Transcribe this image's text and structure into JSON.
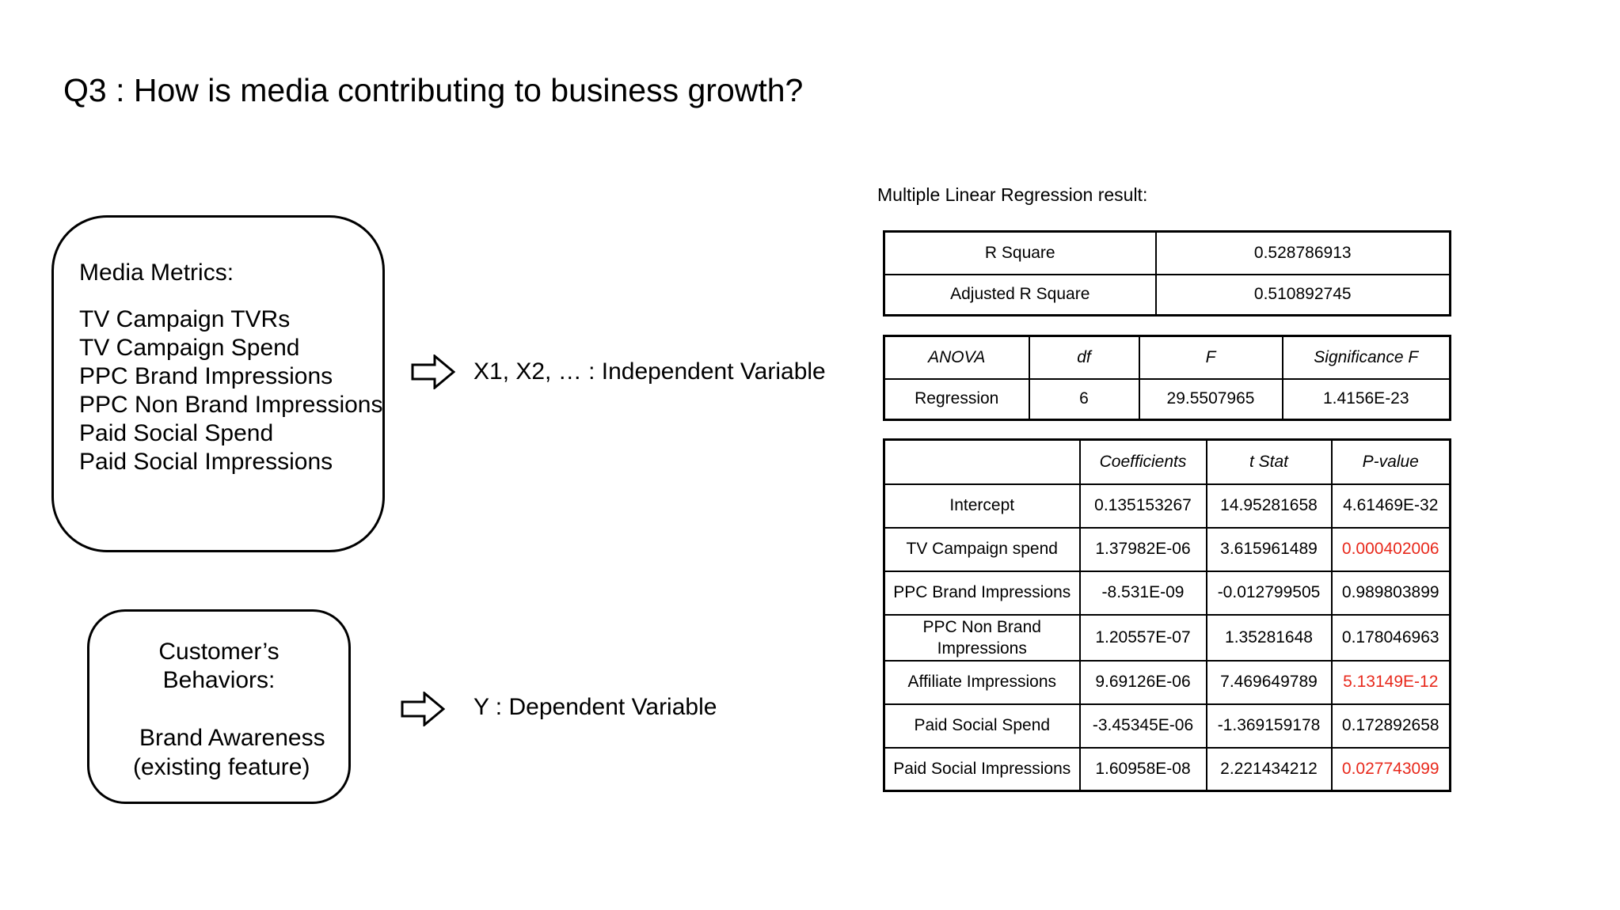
{
  "title": "Q3 : How is media contributing to business growth?",
  "media_box": {
    "heading": "Media Metrics:",
    "items": [
      "TV Campaign TVRs",
      "TV Campaign Spend",
      "PPC Brand Impressions",
      "PPC Non Brand Impressions",
      "Paid Social Spend",
      "Paid Social Impressions"
    ]
  },
  "customer_box": {
    "line1": "Customer’s",
    "line2": "Behaviors:",
    "line3": "Brand Awareness",
    "line4": "(existing feature)"
  },
  "independent_label": "X1, X2, … : Independent Variable",
  "dependent_label": "Y : Dependent Variable",
  "regression_title": "Multiple Linear Regression result:",
  "summary_table": [
    {
      "label": "R Square",
      "value": "0.528786913"
    },
    {
      "label": "Adjusted R Square",
      "value": "0.510892745"
    }
  ],
  "anova_table": {
    "headers": [
      "ANOVA",
      "df",
      "F",
      "Significance F"
    ],
    "row": [
      "Regression",
      "6",
      "29.5507965",
      "1.4156E-23"
    ]
  },
  "coef_table": {
    "headers": [
      "",
      "Coefficients",
      "t Stat",
      "P-value"
    ],
    "rows": [
      {
        "name": "Intercept",
        "coef": "0.135153267",
        "t": "14.95281658",
        "p": "4.61469E-32"
      },
      {
        "name": "TV Campaign spend",
        "coef": "1.37982E-06",
        "t": "3.615961489",
        "p": "0.000402006"
      },
      {
        "name": "PPC Brand Impressions",
        "coef": "-8.531E-09",
        "t": "-0.012799505",
        "p": "0.989803899"
      },
      {
        "name_line1": "PPC Non Brand",
        "name_line2": "Impressions",
        "coef": "1.20557E-07",
        "t": "1.35281648",
        "p": "0.178046963"
      },
      {
        "name": "Affiliate Impressions",
        "coef": "9.69126E-06",
        "t": "7.469649789",
        "p": "5.13149E-12"
      },
      {
        "name": "Paid Social Spend",
        "coef": "-3.45345E-06",
        "t": "-1.369159178",
        "p": "0.172892658"
      },
      {
        "name": "Paid Social Impressions",
        "coef": "1.60958E-08",
        "t": "2.221434212",
        "p": "0.027743099"
      }
    ]
  },
  "colors": {
    "significant": "#e8291c"
  }
}
